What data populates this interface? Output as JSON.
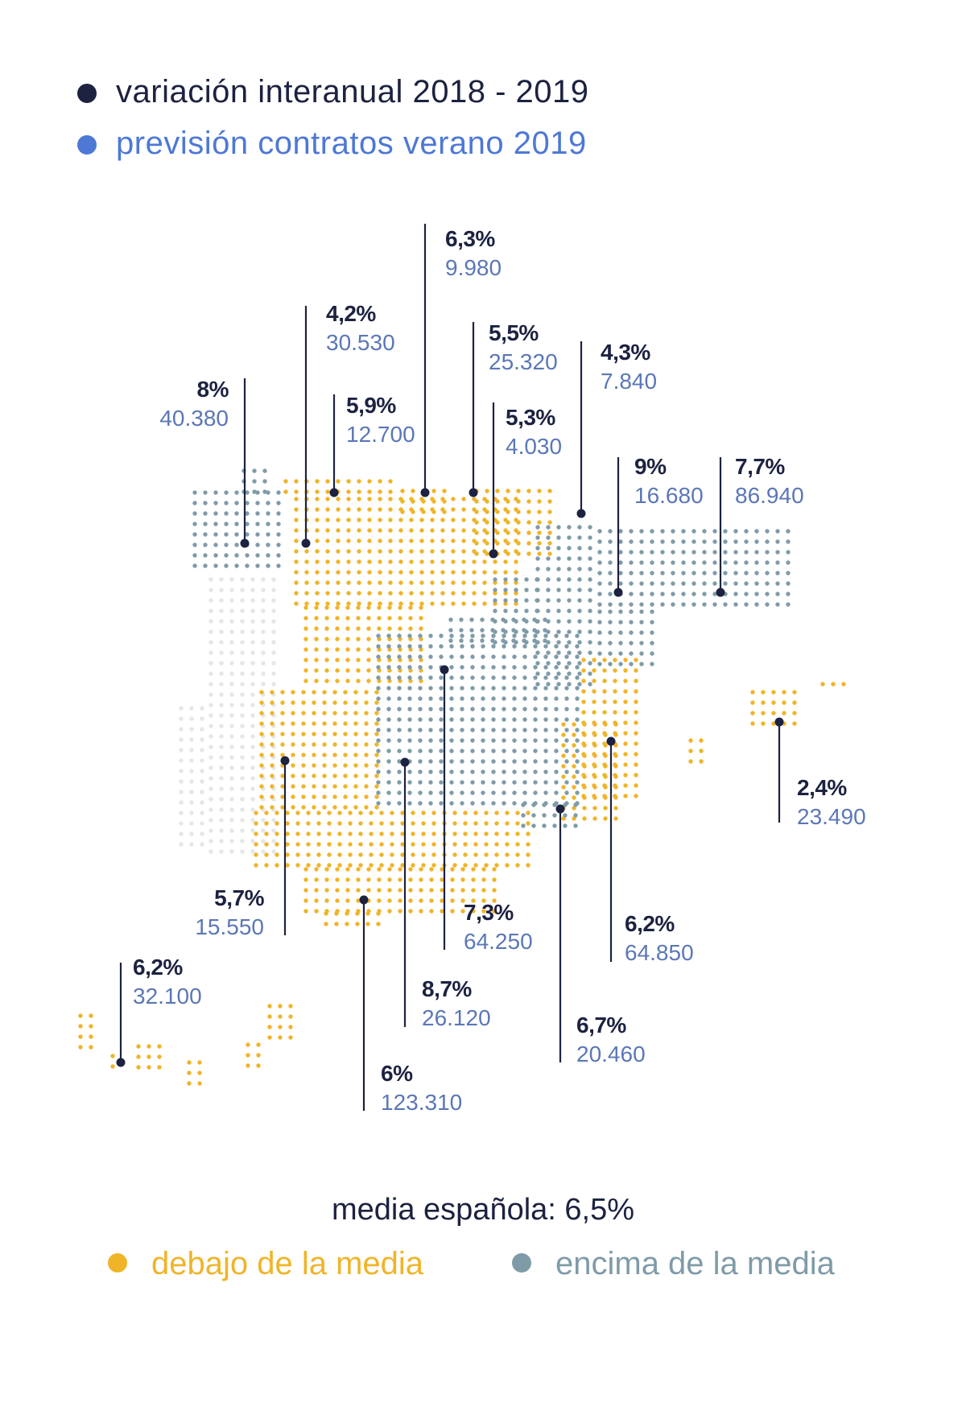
{
  "colors": {
    "dark": "#1c2240",
    "blue": "#4e78d6",
    "below": "#f0b429",
    "above": "#7f9ba8",
    "faint": "#e4e6e9",
    "text_num": "#5b77b6"
  },
  "legend": {
    "variation_label": "variación interanual 2018 - 2019",
    "forecast_label": "previsión contratos verano 2019"
  },
  "average": {
    "label": "media española: 6,5%"
  },
  "category_legend": {
    "below_label": "debajo de la media",
    "above_label": "encima de la media"
  },
  "regions": [
    {
      "key": "galicia",
      "variation": "8%",
      "contracts": "40.380",
      "category": "above"
    },
    {
      "key": "asturias",
      "variation": "4,2%",
      "contracts": "30.530",
      "category": "below"
    },
    {
      "key": "cantabria",
      "variation": "5,9%",
      "contracts": "12.700",
      "category": "below"
    },
    {
      "key": "pais-vasco",
      "variation": "6,3%",
      "contracts": "9.980",
      "category": "below"
    },
    {
      "key": "navarra",
      "variation": "5,5%",
      "contracts": "25.320",
      "category": "below"
    },
    {
      "key": "la-rioja",
      "variation": "5,3%",
      "contracts": "4.030",
      "category": "below"
    },
    {
      "key": "aragon-norte",
      "variation": "4,3%",
      "contracts": "7.840",
      "category": "below"
    },
    {
      "key": "aragon",
      "variation": "9%",
      "contracts": "16.680",
      "category": "above"
    },
    {
      "key": "cataluna",
      "variation": "7,7%",
      "contracts": "86.940",
      "category": "above"
    },
    {
      "key": "baleares",
      "variation": "2,4%",
      "contracts": "23.490",
      "category": "below"
    },
    {
      "key": "extremadura",
      "variation": "5,7%",
      "contracts": "15.550",
      "category": "below"
    },
    {
      "key": "castilla-la-mancha",
      "variation": "7,3%",
      "contracts": "64.250",
      "category": "above"
    },
    {
      "key": "valencia",
      "variation": "6,2%",
      "contracts": "64.850",
      "category": "below"
    },
    {
      "key": "andalucia-centro",
      "variation": "8,7%",
      "contracts": "26.120",
      "category": "above"
    },
    {
      "key": "murcia",
      "variation": "6,7%",
      "contracts": "20.460",
      "category": "above"
    },
    {
      "key": "andalucia",
      "variation": "6%",
      "contracts": "123.310",
      "category": "below"
    },
    {
      "key": "canarias",
      "variation": "6,2%",
      "contracts": "32.100",
      "category": "below"
    }
  ]
}
